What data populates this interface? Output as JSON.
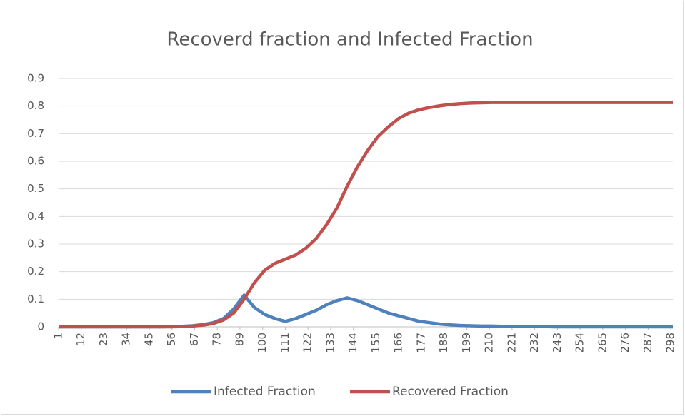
{
  "chart_data": {
    "type": "line",
    "title": "Recoverd fraction and Infected Fraction",
    "x": [
      1,
      6,
      11,
      16,
      21,
      26,
      31,
      36,
      41,
      46,
      51,
      56,
      61,
      66,
      71,
      76,
      81,
      86,
      91,
      96,
      101,
      106,
      111,
      116,
      121,
      126,
      131,
      136,
      141,
      146,
      151,
      156,
      161,
      166,
      171,
      176,
      181,
      186,
      191,
      196,
      201,
      206,
      211,
      216,
      221,
      226,
      231,
      236,
      241,
      246,
      251,
      256,
      261,
      266,
      271,
      276,
      281,
      286,
      291,
      296,
      299
    ],
    "series": [
      {
        "name": "Infected Fraction",
        "color": "#4f81bd",
        "values": [
          0,
          0,
          0,
          0,
          0,
          0,
          0,
          0,
          0,
          0,
          0,
          0.001,
          0.002,
          0.004,
          0.008,
          0.015,
          0.03,
          0.065,
          0.115,
          0.07,
          0.045,
          0.03,
          0.02,
          0.03,
          0.045,
          0.06,
          0.08,
          0.095,
          0.105,
          0.095,
          0.08,
          0.065,
          0.05,
          0.04,
          0.03,
          0.02,
          0.015,
          0.01,
          0.007,
          0.005,
          0.004,
          0.003,
          0.003,
          0.002,
          0.002,
          0.002,
          0.001,
          0.001,
          0,
          0,
          0,
          0,
          0,
          0,
          0,
          0,
          0,
          0,
          0,
          0,
          0
        ]
      },
      {
        "name": "Recovered Fraction",
        "color": "#c0504d",
        "values": [
          0,
          0,
          0,
          0,
          0,
          0,
          0,
          0,
          0,
          0,
          0,
          0,
          0.001,
          0.003,
          0.006,
          0.012,
          0.025,
          0.05,
          0.1,
          0.16,
          0.205,
          0.23,
          0.245,
          0.26,
          0.285,
          0.32,
          0.37,
          0.43,
          0.51,
          0.58,
          0.64,
          0.69,
          0.725,
          0.755,
          0.775,
          0.787,
          0.795,
          0.801,
          0.806,
          0.809,
          0.811,
          0.812,
          0.813,
          0.813,
          0.813,
          0.813,
          0.813,
          0.813,
          0.813,
          0.813,
          0.813,
          0.813,
          0.813,
          0.813,
          0.813,
          0.813,
          0.813,
          0.813,
          0.813,
          0.813,
          0.813
        ]
      }
    ],
    "xlim": [
      1,
      299
    ],
    "xticks": [
      1,
      12,
      23,
      34,
      45,
      56,
      67,
      78,
      89,
      100,
      111,
      122,
      133,
      144,
      155,
      166,
      177,
      188,
      199,
      210,
      221,
      232,
      243,
      254,
      265,
      276,
      287,
      298
    ],
    "ylim": [
      0,
      0.9
    ],
    "yticks": [
      0,
      0.1,
      0.2,
      0.3,
      0.4,
      0.5,
      0.6,
      0.7,
      0.8,
      0.9
    ],
    "grid": true,
    "legend": "bottom"
  }
}
